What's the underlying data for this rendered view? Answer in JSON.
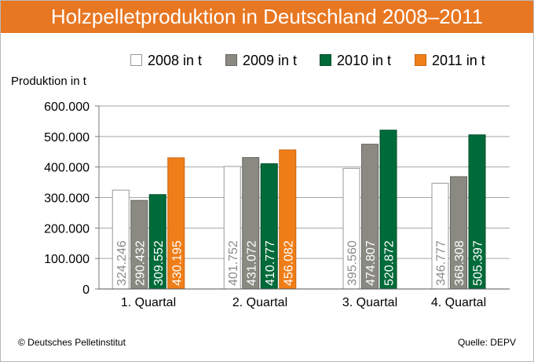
{
  "chart_data": {
    "type": "bar",
    "title": "Holzpelletproduktion in Deutschland 2008–2011",
    "ylabel": "Produktion in t",
    "xlabel": "",
    "categories": [
      "1. Quartal",
      "2. Quartal",
      "3. Quartal",
      "4. Quartal"
    ],
    "ylim": [
      0,
      600000
    ],
    "yticks": [
      {
        "value": 0,
        "label": "0"
      },
      {
        "value": 100000,
        "label": "100.000"
      },
      {
        "value": 200000,
        "label": "200.000"
      },
      {
        "value": 300000,
        "label": "300.000"
      },
      {
        "value": 400000,
        "label": "400.000"
      },
      {
        "value": 500000,
        "label": "500.000"
      },
      {
        "value": 600000,
        "label": "600.000"
      }
    ],
    "grid": true,
    "legend_position": "top-right",
    "series": [
      {
        "name": "2008 in t",
        "color": "#ffffff",
        "stroke": "#999999",
        "label_color": "#8c8c8c",
        "values": [
          324246,
          401752,
          395560,
          346777
        ],
        "labels": [
          "324.246",
          "401.752",
          "395.560",
          "346.777"
        ]
      },
      {
        "name": "2009 in t",
        "color": "#8a8a82",
        "stroke": "#666660",
        "label_color": "#ffffff",
        "values": [
          290432,
          431072,
          474807,
          368308
        ],
        "labels": [
          "290.432",
          "431.072",
          "474.807",
          "368.308"
        ]
      },
      {
        "name": "2010 in t",
        "color": "#006b3a",
        "stroke": "#004d29",
        "label_color": "#ffffff",
        "values": [
          309552,
          410777,
          520872,
          505397
        ],
        "labels": [
          "309.552",
          "410.777",
          "520.872",
          "505.397"
        ]
      },
      {
        "name": "2011 in t",
        "color": "#f07e18",
        "stroke": "#c86612",
        "label_color": "#ffffff",
        "values": [
          430195,
          456082,
          null,
          null
        ],
        "labels": [
          "430.195",
          "456.082",
          "",
          ""
        ]
      }
    ]
  },
  "footer": {
    "copyright": "© Deutsches Pelletinstitut",
    "source": "Quelle: DEPV"
  }
}
